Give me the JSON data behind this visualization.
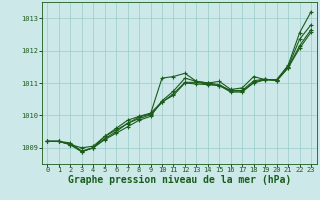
{
  "background_color": "#cce8e8",
  "grid_color": "#99cccc",
  "line_color": "#1a5c1a",
  "xlabel": "Graphe pression niveau de la mer (hPa)",
  "xlabel_fontsize": 7,
  "ylim": [
    1008.5,
    1013.5
  ],
  "xlim": [
    -0.5,
    23.5
  ],
  "yticks": [
    1009,
    1010,
    1011,
    1012,
    1013
  ],
  "xticks": [
    0,
    1,
    2,
    3,
    4,
    5,
    6,
    7,
    8,
    9,
    10,
    11,
    12,
    13,
    14,
    15,
    16,
    17,
    18,
    19,
    20,
    21,
    22,
    23
  ],
  "lines": [
    [
      1009.2,
      1009.2,
      1009.15,
      1008.9,
      1009.0,
      1009.35,
      1009.55,
      1009.75,
      1009.95,
      1010.05,
      1011.15,
      1011.2,
      1011.3,
      1011.05,
      1011.0,
      1011.05,
      1010.8,
      1010.85,
      1011.2,
      1011.1,
      1011.1,
      1011.55,
      1012.55,
      1013.2
    ],
    [
      1009.2,
      1009.2,
      1009.1,
      1008.88,
      1009.0,
      1009.25,
      1009.45,
      1009.65,
      1009.85,
      1009.97,
      1010.45,
      1010.75,
      1011.15,
      1011.05,
      1011.0,
      1010.95,
      1010.75,
      1010.75,
      1011.0,
      1011.1,
      1011.1,
      1011.5,
      1012.35,
      1012.8
    ],
    [
      1009.2,
      1009.2,
      1009.1,
      1009.0,
      1009.05,
      1009.35,
      1009.6,
      1009.85,
      1009.97,
      1010.07,
      1010.42,
      1010.62,
      1011.0,
      1010.97,
      1010.95,
      1010.92,
      1010.77,
      1010.77,
      1011.07,
      1011.12,
      1011.07,
      1011.47,
      1012.15,
      1012.65
    ],
    [
      1009.2,
      1009.2,
      1009.1,
      1008.88,
      1009.0,
      1009.28,
      1009.5,
      1009.76,
      1009.9,
      1010.02,
      1010.4,
      1010.67,
      1011.02,
      1011.02,
      1010.97,
      1010.92,
      1010.72,
      1010.72,
      1011.02,
      1011.12,
      1011.07,
      1011.47,
      1012.07,
      1012.57
    ]
  ]
}
